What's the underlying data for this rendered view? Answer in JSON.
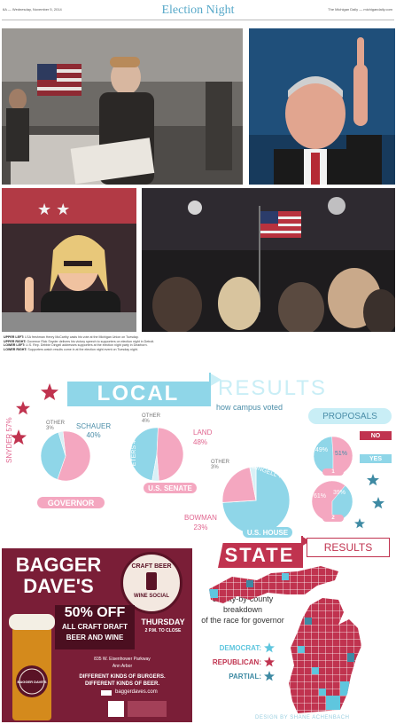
{
  "header": {
    "left": "6A — Wednesday, November 5, 2014",
    "title": "Election Night",
    "right": "The Michigan Daily — michigandaily.com"
  },
  "captions": {
    "lines": [
      {
        "label": "UPPER LEFT:",
        "text": "LSA freshman Henry McCarthy casts his vote at the Michigan Union on Tuesday."
      },
      {
        "label": "UPPER RIGHT:",
        "text": "Governor Rick Snyder delivers his victory speech to supporters on election night in Detroit."
      },
      {
        "label": "LOWER LEFT:",
        "text": "U.S. Rep. Debbie Dingell addresses supporters at the election night party in Dearborn."
      },
      {
        "label": "LOWER RIGHT:",
        "text": "Supporters watch results come in at the election night event on Tuesday night."
      }
    ]
  },
  "local": {
    "title": "LOCAL",
    "results_word": "RESULTS",
    "subtitle": "how campus voted",
    "governor": {
      "label": "GOVERNOR",
      "snyder": "SNYDER 57%",
      "schauer": "SCHAUER",
      "schauer_pct": "40%",
      "other": "OTHER",
      "other_pct": "3%"
    },
    "senate": {
      "label": "U.S. SENATE",
      "other": "OTHER",
      "other_pct": "4%",
      "land": "LAND",
      "land_pct": "48%",
      "peters": "PETERS 48%"
    },
    "house": {
      "label": "U.S. HOUSE",
      "other": "OTHER",
      "other_pct": "3%",
      "dingell": "DINGELL 74%",
      "bowman": "BOWMAN",
      "bowman_pct": "23%"
    }
  },
  "proposals": {
    "title": "PROPOSALS",
    "no": "NO",
    "yes": "YES",
    "p1": {
      "yes_pct": "49%",
      "no_pct": "51%",
      "label": "1"
    },
    "p2": {
      "yes_pct": "61%",
      "no_pct": "39%",
      "label": "2"
    }
  },
  "chart_data": [
    {
      "type": "pie",
      "title": "GOVERNOR",
      "categories": [
        "SNYDER",
        "SCHAUER",
        "OTHER"
      ],
      "values": [
        57,
        40,
        3
      ],
      "colors": [
        "#f4a7c0",
        "#8fd6e8",
        "#d9f0f6"
      ]
    },
    {
      "type": "pie",
      "title": "U.S. SENATE",
      "categories": [
        "PETERS",
        "LAND",
        "OTHER"
      ],
      "values": [
        48,
        48,
        4
      ],
      "colors": [
        "#8fd6e8",
        "#f4a7c0",
        "#d9f0f6"
      ]
    },
    {
      "type": "pie",
      "title": "U.S. HOUSE",
      "categories": [
        "DINGELL",
        "BOWMAN",
        "OTHER"
      ],
      "values": [
        74,
        23,
        3
      ],
      "colors": [
        "#8fd6e8",
        "#f4a7c0",
        "#d9f0f6"
      ]
    }
  ],
  "state": {
    "title": "STATE",
    "results_word": "RESULTS",
    "desc": [
      "county-by-county",
      "breakdown",
      "of the race for governor"
    ],
    "legend": [
      {
        "label": "DEMOCRAT:",
        "color": "#5fc6de"
      },
      {
        "label": "REPUBLICAN:",
        "color": "#c0334f"
      },
      {
        "label": "PARTIAL:",
        "color": "#3e8aa3"
      }
    ],
    "credit": "DESIGN BY SHANE ACHENBACH"
  },
  "ad": {
    "brand_top": "BAGGER",
    "brand_bottom": "DAVE'S",
    "badge_top": "CRAFT BEER",
    "badge_bottom": "WINE SOCIAL",
    "offer": "50% OFF",
    "offer_sub1": "ALL CRAFT DRAFT",
    "offer_sub2": "BEER AND WINE",
    "day": "THURSDAY",
    "time": "2 P.M. TO CLOSE",
    "address1": "835 W. Eisenhower Parkway",
    "address2": "Ann Arbor",
    "tag1": "DIFFERENT KINDS OF BURGERS.",
    "tag2": "DIFFERENT KINDS OF BEER.",
    "web": "baggerdaves.com",
    "glass_text": "BAGGER DAVE'S"
  },
  "colors": {
    "pink": "#f4a7c0",
    "blue": "#8fd6e8",
    "red": "#c0334f",
    "teal": "#3e8aa3",
    "accent": "#58a9c9"
  }
}
